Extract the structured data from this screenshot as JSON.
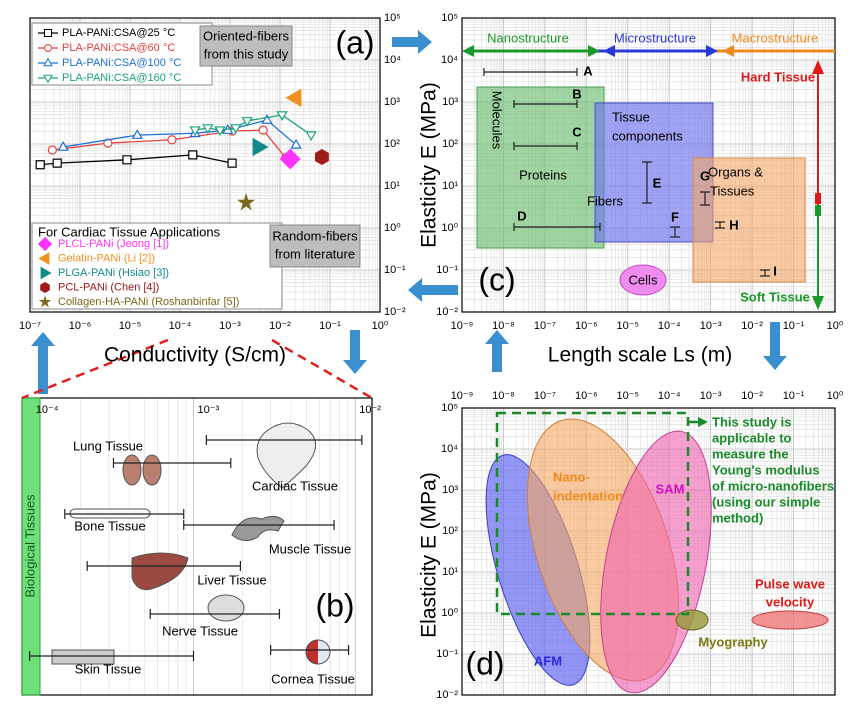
{
  "chart_data": [
    {
      "type": "scatter",
      "label": "(a)",
      "xlabel": "Conductivity (S/cm)",
      "xscale": "log",
      "yscale": "log",
      "xlim": [
        1e-07,
        1
      ],
      "ylim": [
        0.01,
        100000
      ],
      "xticks": [
        {
          "value": 1e-07,
          "label": "10⁻⁷"
        },
        {
          "value": 1e-06,
          "label": "10⁻⁶"
        },
        {
          "value": 1e-05,
          "label": "10⁻⁵"
        },
        {
          "value": 0.0001,
          "label": "10⁻⁴"
        },
        {
          "value": 0.001,
          "label": "10⁻³"
        },
        {
          "value": 0.01,
          "label": "10⁻²"
        },
        {
          "value": 0.1,
          "label": "10⁻¹"
        },
        {
          "value": 1,
          "label": "10⁰"
        }
      ],
      "yticks": [
        {
          "value": 0.01,
          "label": "10⁻²"
        },
        {
          "value": 0.1,
          "label": "10⁻¹"
        },
        {
          "value": 1,
          "label": "10⁰"
        },
        {
          "value": 10,
          "label": "10¹"
        },
        {
          "value": 100,
          "label": "10²"
        },
        {
          "value": 1000,
          "label": "10³"
        },
        {
          "value": 10000,
          "label": "10⁴"
        },
        {
          "value": 100000,
          "label": "10⁵"
        }
      ],
      "grid": true,
      "series": [
        {
          "name": "PLA-PANi:CSA@25 °C",
          "color": "#000000",
          "marker": "square",
          "x": [
            1.6e-07,
            3.5e-07,
            8.7e-06,
            0.00018,
            0.0011
          ],
          "y": [
            32,
            35,
            42,
            55,
            35
          ]
        },
        {
          "name": "PLA-PANi:CSA@60 °C",
          "color": "#e8413c",
          "marker": "circle",
          "x": [
            2.8e-07,
            3.6e-06,
            6.9e-05,
            0.0011,
            0.0046,
            0.013
          ],
          "y": [
            72,
            105,
            126,
            204,
            214,
            47
          ]
        },
        {
          "name": "PLA-PANi:CSA@100 °C",
          "color": "#1e6fd9",
          "marker": "tri-up",
          "x": [
            4.6e-07,
            1.4e-05,
            0.0002,
            0.0009,
            0.0055,
            0.021
          ],
          "y": [
            85,
            163,
            180,
            214,
            372,
            95
          ]
        },
        {
          "name": "PLA-PANi:CSA@160 °C",
          "color": "#1aa37a",
          "marker": "tri-down",
          "x": [
            0.0002,
            0.00036,
            0.00063,
            0.0013,
            0.0022,
            0.011,
            0.042
          ],
          "y": [
            214,
            240,
            214,
            240,
            355,
            490,
            163
          ]
        }
      ],
      "annotation_this_study": [
        "Oriented-fibers",
        "from this study"
      ],
      "literature_title": "For Cardiac Tissue Applications",
      "literature": [
        {
          "name": "PLCL-PANi (Jeong [1])",
          "color": "#ff33ff",
          "marker": "diamond",
          "x": [
            0.016
          ],
          "y": [
            44
          ]
        },
        {
          "name": "Gelatin-PANi (Li [2])",
          "color": "#f0901e",
          "marker": "tri-left",
          "x": [
            0.02
          ],
          "y": [
            1260
          ]
        },
        {
          "name": "PLGA-PANi (Hsiao [3])",
          "color": "#138a8a",
          "marker": "tri-right",
          "x": [
            0.0038
          ],
          "y": [
            85
          ]
        },
        {
          "name": "PCL-PANi (Chen [4])",
          "color": "#a01a1a",
          "marker": "hexagon",
          "x": [
            0.069
          ],
          "y": [
            49
          ]
        },
        {
          "name": "Collagen-HA-PANi (Roshanbinfar [5])",
          "color": "#7a6a1a",
          "marker": "star",
          "x": [
            0.0021
          ],
          "y": [
            4
          ]
        }
      ],
      "annotation_literature": [
        "Random-fibers",
        "from literature"
      ]
    },
    {
      "type": "range",
      "label": "(b)",
      "side_label": "Biological Tissues",
      "xscale": "log",
      "xlim": [
        8.7e-05,
        0.0127
      ],
      "xticks": [
        {
          "value": 0.0001,
          "label": "10⁻⁴"
        },
        {
          "value": 0.001,
          "label": "10⁻³"
        },
        {
          "value": 0.01,
          "label": "10⁻²"
        }
      ],
      "tissues": [
        {
          "name": "Lung Tissue",
          "range": [
            0.00032,
            0.0017
          ]
        },
        {
          "name": "Cardiac Tissue",
          "range": [
            0.0012,
            0.011
          ]
        },
        {
          "name": "Bone Tissue",
          "range": [
            0.00016,
            0.00087
          ]
        },
        {
          "name": "Muscle Tissue",
          "range": [
            0.00087,
            0.0074
          ]
        },
        {
          "name": "Liver Tissue",
          "range": [
            0.00022,
            0.00195
          ]
        },
        {
          "name": "Nerve Tissue",
          "range": [
            0.00054,
            0.0034
          ]
        },
        {
          "name": "Skin Tissue",
          "range": [
            9.7e-05,
            0.001
          ]
        },
        {
          "name": "Cornea Tissue",
          "range": [
            0.003,
            0.0091
          ]
        }
      ]
    },
    {
      "type": "schematic",
      "label": "(c)",
      "xlabel": "Length scale Ls  (m)",
      "ylabel": "Elasticity E (MPa)",
      "xscale": "log",
      "yscale": "log",
      "xlim": [
        1e-09,
        1
      ],
      "ylim": [
        0.01,
        100000
      ],
      "xticks": [
        {
          "value": 1e-09,
          "label": "10⁻⁹"
        },
        {
          "value": 1e-08,
          "label": "10⁻⁸"
        },
        {
          "value": 1e-07,
          "label": "10⁻⁷"
        },
        {
          "value": 1e-06,
          "label": "10⁻⁶"
        },
        {
          "value": 1e-05,
          "label": "10⁻⁵"
        },
        {
          "value": 0.0001,
          "label": "10⁻⁴"
        },
        {
          "value": 0.001,
          "label": "10⁻³"
        },
        {
          "value": 0.01,
          "label": "10⁻²"
        },
        {
          "value": 0.1,
          "label": "10⁻¹"
        },
        {
          "value": 1,
          "label": "10⁰"
        }
      ],
      "yticks": [
        {
          "value": 0.01,
          "label": "10⁻²"
        },
        {
          "value": 0.1,
          "label": "10⁻¹"
        },
        {
          "value": 1,
          "label": "10⁰"
        },
        {
          "value": 10,
          "label": "10¹"
        },
        {
          "value": 100,
          "label": "10²"
        },
        {
          "value": 1000,
          "label": "10³"
        },
        {
          "value": 10000,
          "label": "10⁴"
        },
        {
          "value": 100000,
          "label": "10⁵"
        }
      ],
      "grid": true,
      "scales": [
        "Nanostructure",
        "Microstructure",
        "Macrostructure"
      ],
      "hard": "Hard Tissue",
      "soft": "Soft Tissue",
      "regions": {
        "molecules": "Molecules",
        "proteins": "Proteins",
        "tissue_components": [
          "Tissue",
          "components"
        ],
        "fibers": "Fibers",
        "organs": [
          "Organs &",
          "Tissues"
        ],
        "cells": "Cells"
      },
      "ranges": [
        "A",
        "B",
        "C",
        "D",
        "E",
        "F",
        "G",
        "H",
        "I"
      ]
    },
    {
      "type": "schematic",
      "label": "(d)",
      "ylabel": "Elasticity E (MPa)",
      "xscale": "log",
      "yscale": "log",
      "xlim": [
        1e-09,
        1
      ],
      "ylim": [
        0.01,
        100000
      ],
      "xticks": [
        {
          "value": 1e-09,
          "label": "10⁻⁹"
        },
        {
          "value": 1e-08,
          "label": "10⁻⁸"
        },
        {
          "value": 1e-07,
          "label": "10⁻⁷"
        },
        {
          "value": 1e-06,
          "label": "10⁻⁶"
        },
        {
          "value": 1e-05,
          "label": "10⁻⁵"
        },
        {
          "value": 0.0001,
          "label": "10⁻⁴"
        },
        {
          "value": 0.001,
          "label": "10⁻³"
        },
        {
          "value": 0.01,
          "label": "10⁻²"
        },
        {
          "value": 0.1,
          "label": "10⁻¹"
        },
        {
          "value": 1,
          "label": "10⁰"
        }
      ],
      "yticks": [
        {
          "value": 0.01,
          "label": "10⁻²"
        },
        {
          "value": 0.1,
          "label": "10⁻¹"
        },
        {
          "value": 1,
          "label": "10⁰"
        },
        {
          "value": 10,
          "label": "10¹"
        },
        {
          "value": 100,
          "label": "10²"
        },
        {
          "value": 1000,
          "label": "10³"
        },
        {
          "value": 10000,
          "label": "10⁴"
        },
        {
          "value": 100000,
          "label": "10⁵"
        }
      ],
      "grid": true,
      "methods": {
        "afm": "AFM",
        "nano": [
          "Nano-",
          "indentation"
        ],
        "sam": "SAM",
        "myo": "Myography",
        "pwv": [
          "Pulse wave",
          "velocity"
        ]
      },
      "note": [
        "This study is",
        "applicable to",
        "measure the",
        "Young's modulus",
        "of micro-nanofibers",
        "(using our simple",
        "method)"
      ]
    }
  ]
}
